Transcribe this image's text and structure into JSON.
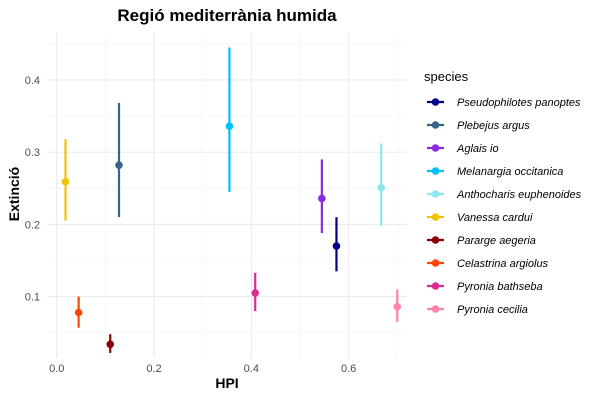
{
  "chart_data": {
    "type": "scatter",
    "title": "Regió mediterrània humida",
    "xlabel": "HPI",
    "ylabel": "Extinció",
    "xlim": [
      -0.02,
      0.72
    ],
    "ylim": [
      0.015,
      0.465
    ],
    "xticks": [
      0.0,
      0.2,
      0.4,
      0.6
    ],
    "yticks": [
      0.1,
      0.2,
      0.3,
      0.4
    ],
    "x_tick_labels": [
      "0.0",
      "0.2",
      "0.4",
      "0.6"
    ],
    "y_tick_labels": [
      "0.1",
      "0.2",
      "0.3",
      "0.4"
    ],
    "grid": true,
    "legend_title": "species",
    "legend_position": "right",
    "series": [
      {
        "name": "Pseudophilotes panoptes",
        "color": "#00008B",
        "x": 0.575,
        "y": 0.17,
        "ymin": 0.135,
        "ymax": 0.21
      },
      {
        "name": "Plebejus argus",
        "color": "#36648B",
        "x": 0.128,
        "y": 0.282,
        "ymin": 0.21,
        "ymax": 0.368
      },
      {
        "name": "Aglais io",
        "color": "#8A2BE2",
        "x": 0.545,
        "y": 0.236,
        "ymin": 0.188,
        "ymax": 0.29
      },
      {
        "name": "Melanargia occitanica",
        "color": "#00BFFF",
        "x": 0.355,
        "y": 0.336,
        "ymin": 0.245,
        "ymax": 0.445
      },
      {
        "name": "Anthocharis euphenoides",
        "color": "#8EE5EE",
        "x": 0.667,
        "y": 0.251,
        "ymin": 0.198,
        "ymax": 0.312
      },
      {
        "name": "Vanessa cardui",
        "color": "#F0C30A",
        "x": 0.018,
        "y": 0.259,
        "ymin": 0.205,
        "ymax": 0.318
      },
      {
        "name": "Pararge aegeria",
        "color": "#8B0000",
        "x": 0.11,
        "y": 0.034,
        "ymin": 0.022,
        "ymax": 0.048
      },
      {
        "name": "Celastrina argiolus",
        "color": "#FF4500",
        "x": 0.045,
        "y": 0.078,
        "ymin": 0.057,
        "ymax": 0.1
      },
      {
        "name": "Pyronia bathseba",
        "color": "#DB2D8F",
        "x": 0.408,
        "y": 0.105,
        "ymin": 0.08,
        "ymax": 0.133
      },
      {
        "name": "Pyronia cecilia",
        "color": "#FF82AB",
        "x": 0.7,
        "y": 0.086,
        "ymin": 0.065,
        "ymax": 0.11
      }
    ]
  }
}
